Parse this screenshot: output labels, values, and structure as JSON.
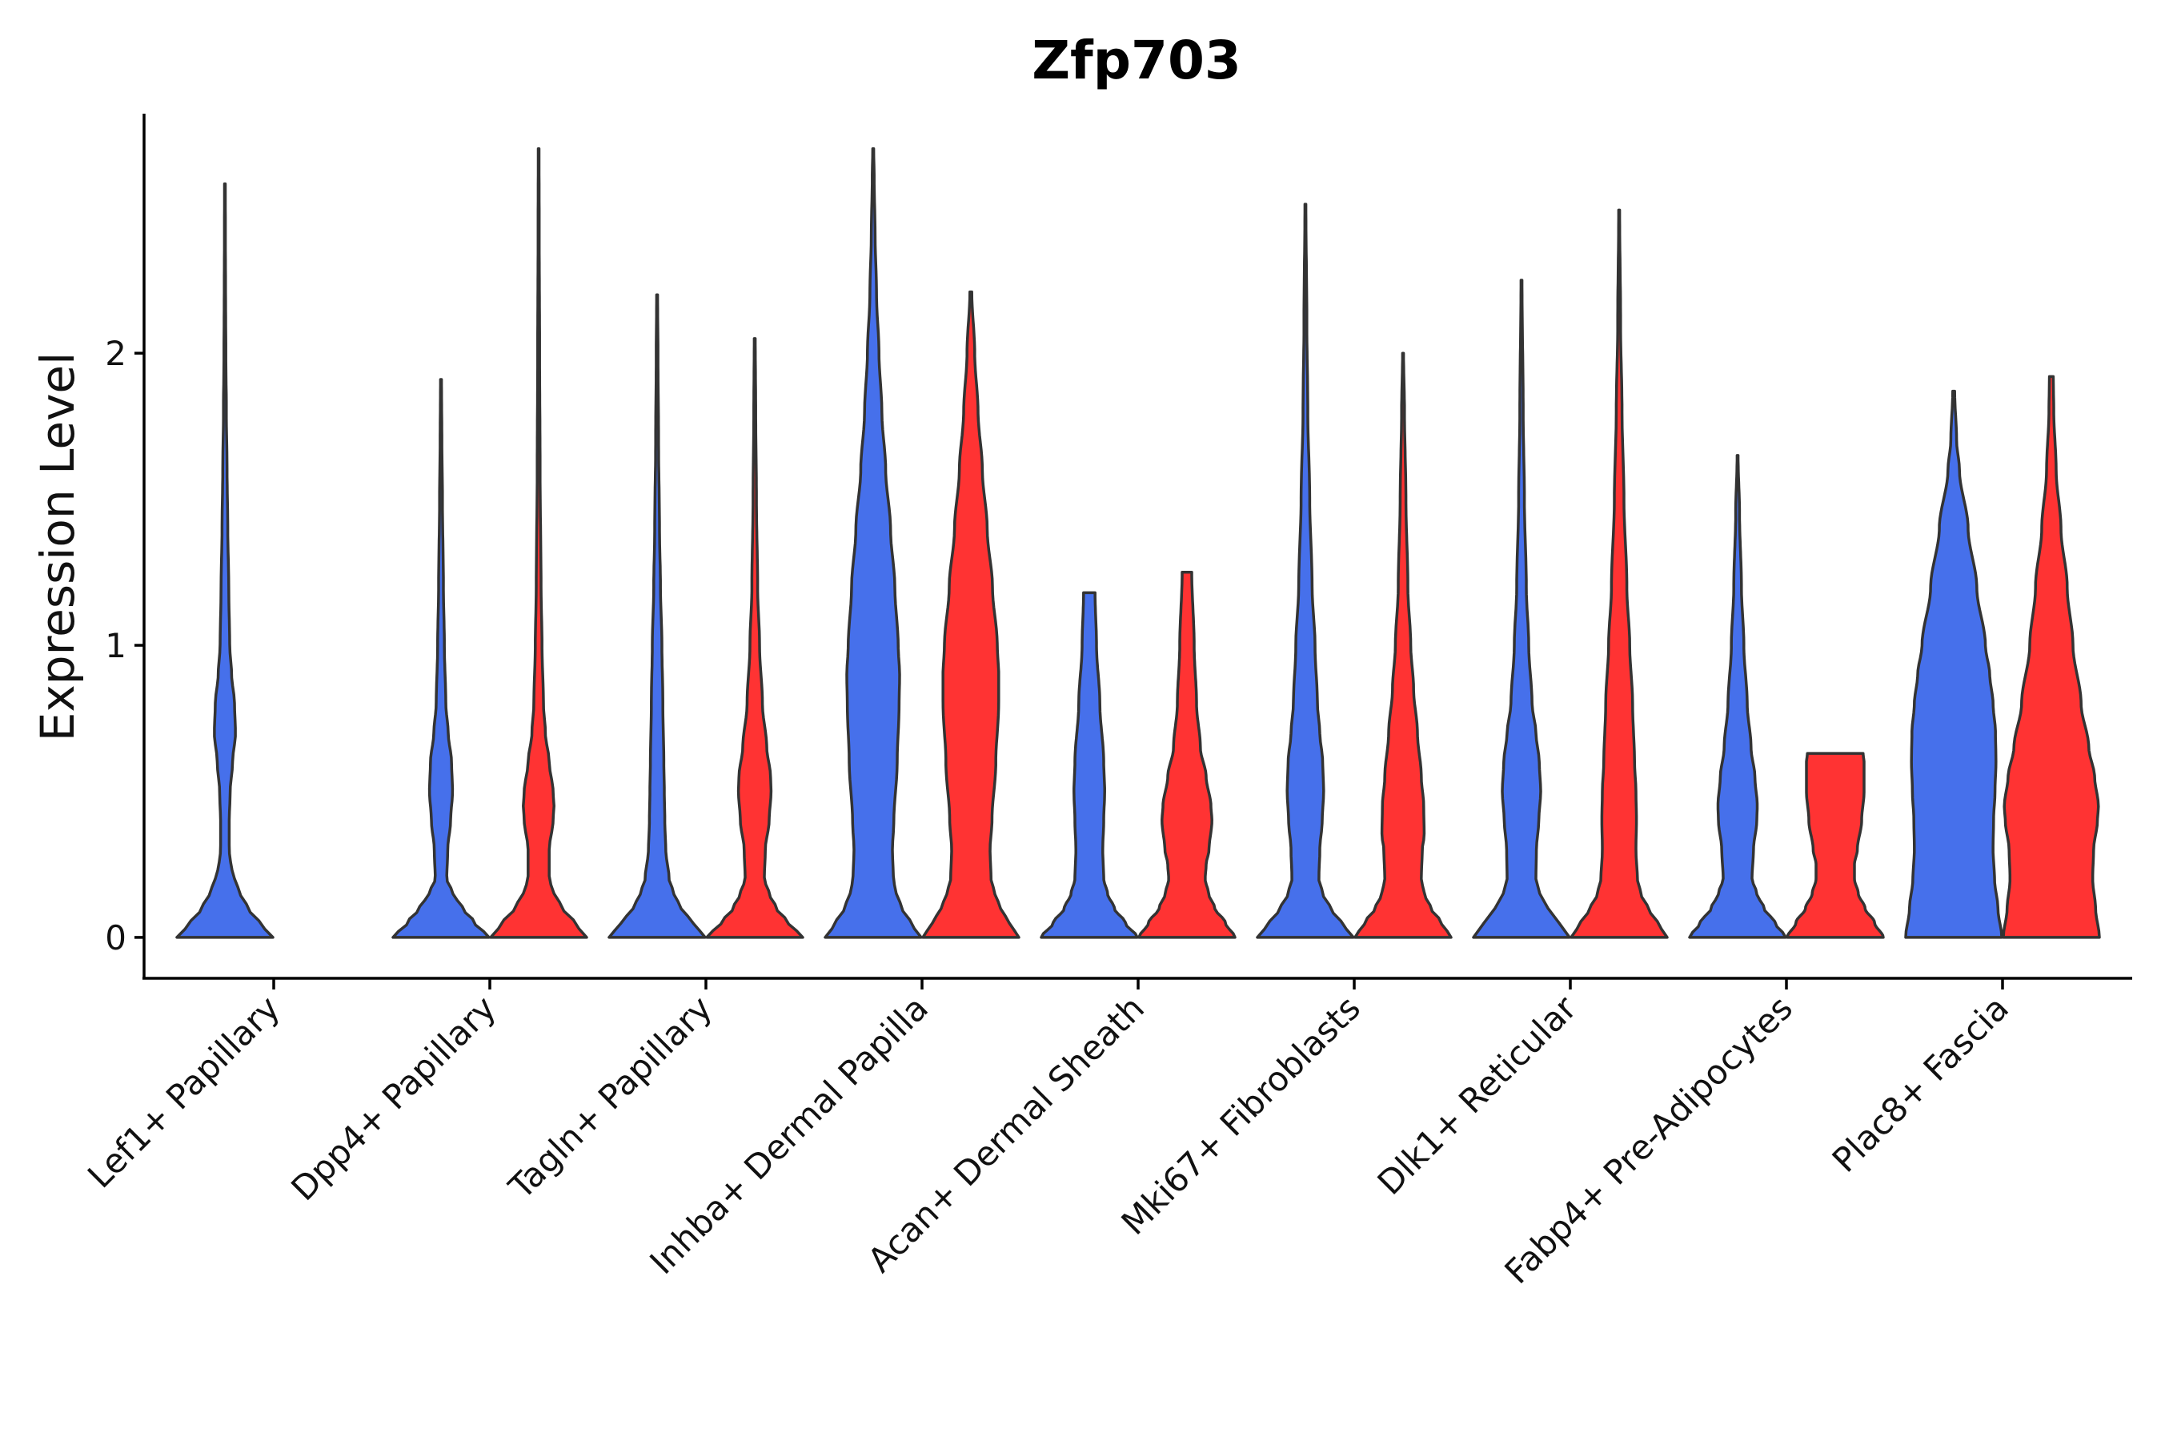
{
  "chart_data": {
    "type": "violin",
    "title": "Zfp703",
    "xlabel": "",
    "ylabel": "Expression Level",
    "ylim": [
      -0.14,
      2.82
    ],
    "yticks": [
      0,
      1,
      2
    ],
    "grid": false,
    "legend": "none",
    "categories": [
      "Lef1+ Papillary",
      "Dpp4+ Papillary",
      "Tagln+ Papillary",
      "Inhba+ Dermal Papilla",
      "Acan+ Dermal Sheath",
      "Mki67+ Fibroblasts",
      "Dlk1+ Reticular",
      "Fabp4+ Pre-Adipocytes",
      "Plac8+ Fascia"
    ],
    "groups": [
      {
        "name": "blue-group",
        "color": "#4670EB"
      },
      {
        "name": "red-group",
        "color": "#FF3333"
      }
    ],
    "violins": [
      {
        "category": 0,
        "group": 0,
        "max": 2.58,
        "profile": [
          [
            0,
            1.0
          ],
          [
            0.05,
            0.72
          ],
          [
            0.1,
            0.48
          ],
          [
            0.15,
            0.32
          ],
          [
            0.2,
            0.2
          ],
          [
            0.25,
            0.12
          ],
          [
            0.3,
            0.09
          ],
          [
            0.4,
            0.09
          ],
          [
            0.5,
            0.11
          ],
          [
            0.6,
            0.16
          ],
          [
            0.7,
            0.22
          ],
          [
            0.8,
            0.2
          ],
          [
            0.9,
            0.14
          ],
          [
            1.0,
            0.1
          ],
          [
            1.2,
            0.08
          ],
          [
            1.4,
            0.06
          ],
          [
            1.6,
            0.045
          ],
          [
            1.8,
            0.03
          ],
          [
            2.0,
            0.02
          ],
          [
            2.2,
            0.014
          ],
          [
            2.4,
            0.01
          ],
          [
            2.58,
            0.008
          ]
        ]
      },
      {
        "category": 1,
        "group": 0,
        "max": 1.91,
        "profile": [
          [
            0,
            1.0
          ],
          [
            0.05,
            0.7
          ],
          [
            0.1,
            0.45
          ],
          [
            0.15,
            0.25
          ],
          [
            0.2,
            0.12
          ],
          [
            0.3,
            0.14
          ],
          [
            0.4,
            0.2
          ],
          [
            0.5,
            0.24
          ],
          [
            0.6,
            0.22
          ],
          [
            0.7,
            0.15
          ],
          [
            0.8,
            0.1
          ],
          [
            1.0,
            0.07
          ],
          [
            1.2,
            0.05
          ],
          [
            1.5,
            0.03
          ],
          [
            1.7,
            0.018
          ],
          [
            1.91,
            0.01
          ]
        ]
      },
      {
        "category": 1,
        "group": 1,
        "max": 2.7,
        "profile": [
          [
            0,
            1.0
          ],
          [
            0.05,
            0.75
          ],
          [
            0.1,
            0.5
          ],
          [
            0.15,
            0.32
          ],
          [
            0.2,
            0.22
          ],
          [
            0.3,
            0.22
          ],
          [
            0.4,
            0.3
          ],
          [
            0.45,
            0.32
          ],
          [
            0.5,
            0.3
          ],
          [
            0.6,
            0.22
          ],
          [
            0.7,
            0.14
          ],
          [
            0.8,
            0.1
          ],
          [
            1.0,
            0.07
          ],
          [
            1.2,
            0.05
          ],
          [
            1.6,
            0.03
          ],
          [
            2.0,
            0.02
          ],
          [
            2.4,
            0.012
          ],
          [
            2.7,
            0.008
          ]
        ]
      },
      {
        "category": 2,
        "group": 0,
        "max": 2.2,
        "profile": [
          [
            0,
            1.0
          ],
          [
            0.05,
            0.75
          ],
          [
            0.1,
            0.5
          ],
          [
            0.15,
            0.35
          ],
          [
            0.2,
            0.25
          ],
          [
            0.3,
            0.18
          ],
          [
            0.4,
            0.16
          ],
          [
            0.5,
            0.15
          ],
          [
            0.6,
            0.14
          ],
          [
            0.8,
            0.12
          ],
          [
            1.0,
            0.1
          ],
          [
            1.2,
            0.07
          ],
          [
            1.4,
            0.05
          ],
          [
            1.7,
            0.03
          ],
          [
            2.0,
            0.018
          ],
          [
            2.2,
            0.01
          ]
        ]
      },
      {
        "category": 2,
        "group": 1,
        "max": 2.05,
        "profile": [
          [
            0,
            1.0
          ],
          [
            0.05,
            0.7
          ],
          [
            0.1,
            0.45
          ],
          [
            0.15,
            0.3
          ],
          [
            0.2,
            0.2
          ],
          [
            0.3,
            0.22
          ],
          [
            0.4,
            0.3
          ],
          [
            0.5,
            0.34
          ],
          [
            0.55,
            0.33
          ],
          [
            0.65,
            0.25
          ],
          [
            0.8,
            0.16
          ],
          [
            1.0,
            0.1
          ],
          [
            1.2,
            0.06
          ],
          [
            1.5,
            0.035
          ],
          [
            1.8,
            0.02
          ],
          [
            2.05,
            0.01
          ]
        ]
      },
      {
        "category": 3,
        "group": 0,
        "max": 2.7,
        "profile": [
          [
            0,
            1.0
          ],
          [
            0.05,
            0.78
          ],
          [
            0.1,
            0.6
          ],
          [
            0.15,
            0.48
          ],
          [
            0.2,
            0.42
          ],
          [
            0.3,
            0.4
          ],
          [
            0.4,
            0.43
          ],
          [
            0.6,
            0.5
          ],
          [
            0.8,
            0.54
          ],
          [
            0.9,
            0.55
          ],
          [
            1.0,
            0.52
          ],
          [
            1.2,
            0.45
          ],
          [
            1.4,
            0.36
          ],
          [
            1.6,
            0.26
          ],
          [
            1.8,
            0.18
          ],
          [
            2.0,
            0.12
          ],
          [
            2.2,
            0.07
          ],
          [
            2.4,
            0.04
          ],
          [
            2.6,
            0.02
          ],
          [
            2.7,
            0.01
          ]
        ]
      },
      {
        "category": 3,
        "group": 1,
        "max": 2.21,
        "profile": [
          [
            0,
            1.0
          ],
          [
            0.05,
            0.8
          ],
          [
            0.1,
            0.62
          ],
          [
            0.15,
            0.5
          ],
          [
            0.2,
            0.42
          ],
          [
            0.3,
            0.4
          ],
          [
            0.4,
            0.44
          ],
          [
            0.6,
            0.52
          ],
          [
            0.8,
            0.58
          ],
          [
            0.9,
            0.58
          ],
          [
            1.0,
            0.55
          ],
          [
            1.2,
            0.45
          ],
          [
            1.4,
            0.34
          ],
          [
            1.6,
            0.24
          ],
          [
            1.8,
            0.15
          ],
          [
            2.0,
            0.08
          ],
          [
            2.21,
            0.02
          ]
        ]
      },
      {
        "category": 4,
        "group": 0,
        "max": 1.18,
        "profile": [
          [
            0,
            1.0
          ],
          [
            0.05,
            0.75
          ],
          [
            0.1,
            0.52
          ],
          [
            0.15,
            0.38
          ],
          [
            0.2,
            0.3
          ],
          [
            0.3,
            0.28
          ],
          [
            0.4,
            0.3
          ],
          [
            0.5,
            0.32
          ],
          [
            0.6,
            0.3
          ],
          [
            0.8,
            0.22
          ],
          [
            1.0,
            0.15
          ],
          [
            1.18,
            0.12
          ]
        ]
      },
      {
        "category": 4,
        "group": 1,
        "max": 1.25,
        "profile": [
          [
            0,
            1.0
          ],
          [
            0.05,
            0.8
          ],
          [
            0.1,
            0.58
          ],
          [
            0.15,
            0.45
          ],
          [
            0.2,
            0.38
          ],
          [
            0.25,
            0.4
          ],
          [
            0.3,
            0.46
          ],
          [
            0.4,
            0.52
          ],
          [
            0.45,
            0.5
          ],
          [
            0.55,
            0.4
          ],
          [
            0.65,
            0.28
          ],
          [
            0.8,
            0.2
          ],
          [
            1.0,
            0.15
          ],
          [
            1.25,
            0.1
          ]
        ]
      },
      {
        "category": 5,
        "group": 0,
        "max": 2.51,
        "profile": [
          [
            0,
            1.0
          ],
          [
            0.05,
            0.75
          ],
          [
            0.1,
            0.52
          ],
          [
            0.15,
            0.36
          ],
          [
            0.2,
            0.28
          ],
          [
            0.3,
            0.3
          ],
          [
            0.4,
            0.35
          ],
          [
            0.5,
            0.38
          ],
          [
            0.6,
            0.36
          ],
          [
            0.7,
            0.3
          ],
          [
            0.8,
            0.25
          ],
          [
            1.0,
            0.2
          ],
          [
            1.2,
            0.14
          ],
          [
            1.5,
            0.09
          ],
          [
            1.8,
            0.05
          ],
          [
            2.1,
            0.03
          ],
          [
            2.51,
            0.01
          ]
        ]
      },
      {
        "category": 5,
        "group": 1,
        "max": 2.0,
        "profile": [
          [
            0,
            1.0
          ],
          [
            0.05,
            0.8
          ],
          [
            0.1,
            0.58
          ],
          [
            0.15,
            0.44
          ],
          [
            0.2,
            0.38
          ],
          [
            0.3,
            0.4
          ],
          [
            0.35,
            0.44
          ],
          [
            0.45,
            0.43
          ],
          [
            0.55,
            0.38
          ],
          [
            0.7,
            0.3
          ],
          [
            0.85,
            0.22
          ],
          [
            1.0,
            0.16
          ],
          [
            1.2,
            0.1
          ],
          [
            1.5,
            0.06
          ],
          [
            1.8,
            0.03
          ],
          [
            2.0,
            0.01
          ]
        ]
      },
      {
        "category": 6,
        "group": 0,
        "max": 2.25,
        "profile": [
          [
            0,
            1.0
          ],
          [
            0.05,
            0.78
          ],
          [
            0.1,
            0.55
          ],
          [
            0.15,
            0.38
          ],
          [
            0.2,
            0.3
          ],
          [
            0.3,
            0.31
          ],
          [
            0.4,
            0.36
          ],
          [
            0.5,
            0.4
          ],
          [
            0.6,
            0.37
          ],
          [
            0.7,
            0.3
          ],
          [
            0.8,
            0.22
          ],
          [
            1.0,
            0.15
          ],
          [
            1.2,
            0.1
          ],
          [
            1.5,
            0.06
          ],
          [
            1.8,
            0.035
          ],
          [
            2.25,
            0.01
          ]
        ]
      },
      {
        "category": 6,
        "group": 1,
        "max": 2.49,
        "profile": [
          [
            0,
            1.0
          ],
          [
            0.05,
            0.8
          ],
          [
            0.1,
            0.6
          ],
          [
            0.15,
            0.45
          ],
          [
            0.2,
            0.38
          ],
          [
            0.3,
            0.35
          ],
          [
            0.4,
            0.36
          ],
          [
            0.5,
            0.35
          ],
          [
            0.6,
            0.32
          ],
          [
            0.8,
            0.28
          ],
          [
            1.0,
            0.22
          ],
          [
            1.2,
            0.16
          ],
          [
            1.5,
            0.1
          ],
          [
            1.8,
            0.06
          ],
          [
            2.1,
            0.03
          ],
          [
            2.49,
            0.01
          ]
        ]
      },
      {
        "category": 7,
        "group": 0,
        "max": 1.65,
        "profile": [
          [
            0,
            1.0
          ],
          [
            0.05,
            0.78
          ],
          [
            0.1,
            0.55
          ],
          [
            0.15,
            0.4
          ],
          [
            0.2,
            0.3
          ],
          [
            0.3,
            0.33
          ],
          [
            0.4,
            0.4
          ],
          [
            0.45,
            0.41
          ],
          [
            0.55,
            0.36
          ],
          [
            0.65,
            0.28
          ],
          [
            0.8,
            0.2
          ],
          [
            1.0,
            0.13
          ],
          [
            1.2,
            0.08
          ],
          [
            1.45,
            0.04
          ],
          [
            1.65,
            0.01
          ]
        ]
      },
      {
        "category": 7,
        "group": 1,
        "max": 0.63,
        "profile": [
          [
            0,
            1.0
          ],
          [
            0.05,
            0.82
          ],
          [
            0.1,
            0.62
          ],
          [
            0.15,
            0.48
          ],
          [
            0.2,
            0.4
          ],
          [
            0.25,
            0.4
          ],
          [
            0.3,
            0.46
          ],
          [
            0.4,
            0.55
          ],
          [
            0.5,
            0.6
          ],
          [
            0.6,
            0.6
          ],
          [
            0.63,
            0.58
          ]
        ]
      },
      {
        "category": 8,
        "group": 0,
        "max": 1.87,
        "profile": [
          [
            0,
            1.0
          ],
          [
            0.1,
            0.92
          ],
          [
            0.2,
            0.85
          ],
          [
            0.3,
            0.82
          ],
          [
            0.4,
            0.83
          ],
          [
            0.5,
            0.86
          ],
          [
            0.6,
            0.88
          ],
          [
            0.7,
            0.87
          ],
          [
            0.8,
            0.82
          ],
          [
            0.9,
            0.75
          ],
          [
            1.0,
            0.66
          ],
          [
            1.2,
            0.48
          ],
          [
            1.4,
            0.3
          ],
          [
            1.6,
            0.12
          ],
          [
            1.7,
            0.06
          ],
          [
            1.87,
            0.02
          ]
        ]
      },
      {
        "category": 8,
        "group": 1,
        "max": 1.92,
        "profile": [
          [
            0,
            1.0
          ],
          [
            0.1,
            0.92
          ],
          [
            0.2,
            0.86
          ],
          [
            0.3,
            0.88
          ],
          [
            0.4,
            0.96
          ],
          [
            0.45,
            0.98
          ],
          [
            0.55,
            0.9
          ],
          [
            0.65,
            0.78
          ],
          [
            0.8,
            0.62
          ],
          [
            1.0,
            0.45
          ],
          [
            1.2,
            0.33
          ],
          [
            1.4,
            0.2
          ],
          [
            1.6,
            0.1
          ],
          [
            1.8,
            0.05
          ],
          [
            1.92,
            0.04
          ]
        ]
      }
    ]
  }
}
